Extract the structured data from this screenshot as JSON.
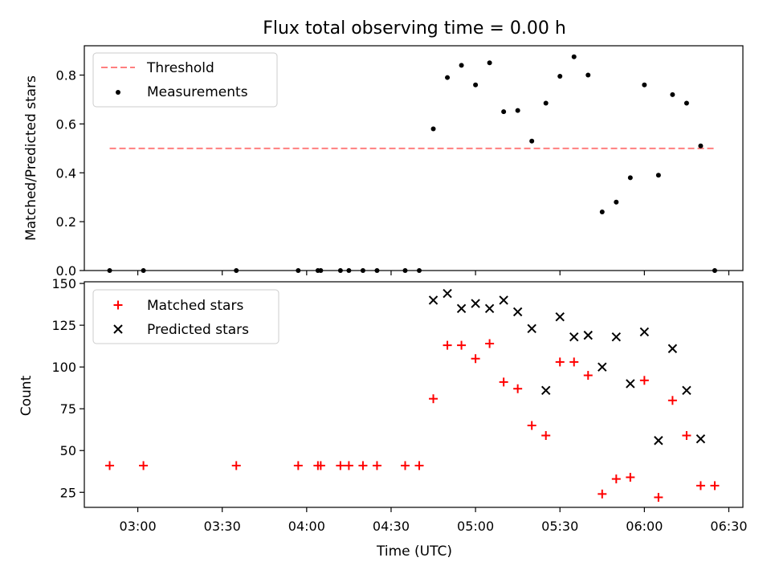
{
  "title": "Flux total observing time = 0.00 h",
  "chart_data": [
    {
      "type": "scatter",
      "ylabel": "Matched/Predicted stars",
      "ylim": [
        0,
        0.92
      ],
      "yticks": [
        0.0,
        0.2,
        0.4,
        0.6,
        0.8
      ],
      "ytick_labels": [
        "0.0",
        "0.2",
        "0.4",
        "0.6",
        "0.8"
      ],
      "legend": {
        "position": "top-left",
        "entries": [
          "Threshold",
          "Measurements"
        ]
      },
      "threshold": {
        "name": "Threshold",
        "value": 0.5,
        "x_start": "02:50",
        "x_end": "06:25",
        "color": "#ff7f7f"
      },
      "series": [
        {
          "name": "Measurements",
          "color": "#000000",
          "points": [
            [
              "02:50",
              0.0
            ],
            [
              "03:02",
              0.0
            ],
            [
              "03:35",
              0.0
            ],
            [
              "03:57",
              0.0
            ],
            [
              "04:04",
              0.0
            ],
            [
              "04:05",
              0.0
            ],
            [
              "04:12",
              0.0
            ],
            [
              "04:15",
              0.0
            ],
            [
              "04:20",
              0.0
            ],
            [
              "04:25",
              0.0
            ],
            [
              "04:35",
              0.0
            ],
            [
              "04:40",
              0.0
            ],
            [
              "04:45",
              0.58
            ],
            [
              "04:50",
              0.79
            ],
            [
              "04:55",
              0.84
            ],
            [
              "05:00",
              0.76
            ],
            [
              "05:05",
              0.85
            ],
            [
              "05:10",
              0.65
            ],
            [
              "05:15",
              0.655
            ],
            [
              "05:20",
              0.53
            ],
            [
              "05:25",
              0.685
            ],
            [
              "05:30",
              0.795
            ],
            [
              "05:35",
              0.875
            ],
            [
              "05:40",
              0.8
            ],
            [
              "05:45",
              0.24
            ],
            [
              "05:50",
              0.28
            ],
            [
              "05:55",
              0.38
            ],
            [
              "06:00",
              0.76
            ],
            [
              "06:05",
              0.39
            ],
            [
              "06:10",
              0.72
            ],
            [
              "06:15",
              0.685
            ],
            [
              "06:20",
              0.51
            ],
            [
              "06:25",
              0.0
            ]
          ]
        }
      ]
    },
    {
      "type": "scatter",
      "xlabel": "Time (UTC)",
      "ylabel": "Count",
      "ylim": [
        16,
        151
      ],
      "yticks": [
        25,
        50,
        75,
        100,
        125,
        150
      ],
      "ytick_labels": [
        "25",
        "50",
        "75",
        "100",
        "125",
        "150"
      ],
      "xlim": [
        "02:41",
        "06:35"
      ],
      "xticks": [
        "03:00",
        "03:30",
        "04:00",
        "04:30",
        "05:00",
        "05:30",
        "06:00",
        "06:30"
      ],
      "legend": {
        "position": "top-left",
        "entries": [
          "Matched stars",
          "Predicted stars"
        ]
      },
      "series": [
        {
          "name": "Matched stars",
          "marker": "+",
          "color": "#ff0000",
          "points": [
            [
              "02:50",
              41
            ],
            [
              "03:02",
              41
            ],
            [
              "03:35",
              41
            ],
            [
              "03:57",
              41
            ],
            [
              "04:04",
              41
            ],
            [
              "04:05",
              41
            ],
            [
              "04:12",
              41
            ],
            [
              "04:15",
              41
            ],
            [
              "04:20",
              41
            ],
            [
              "04:25",
              41
            ],
            [
              "04:35",
              41
            ],
            [
              "04:40",
              41
            ],
            [
              "04:45",
              81
            ],
            [
              "04:50",
              113
            ],
            [
              "04:55",
              113
            ],
            [
              "05:00",
              105
            ],
            [
              "05:05",
              114
            ],
            [
              "05:10",
              91
            ],
            [
              "05:15",
              87
            ],
            [
              "05:20",
              65
            ],
            [
              "05:25",
              59
            ],
            [
              "05:30",
              103
            ],
            [
              "05:35",
              103
            ],
            [
              "05:40",
              95
            ],
            [
              "05:45",
              24
            ],
            [
              "05:50",
              33
            ],
            [
              "05:55",
              34
            ],
            [
              "06:00",
              92
            ],
            [
              "06:05",
              22
            ],
            [
              "06:10",
              80
            ],
            [
              "06:15",
              59
            ],
            [
              "06:20",
              29
            ],
            [
              "06:25",
              29
            ]
          ]
        },
        {
          "name": "Predicted stars",
          "marker": "x",
          "color": "#000000",
          "points": [
            [
              "04:45",
              140
            ],
            [
              "04:50",
              144
            ],
            [
              "04:55",
              135
            ],
            [
              "05:00",
              138
            ],
            [
              "05:05",
              135
            ],
            [
              "05:10",
              140
            ],
            [
              "05:15",
              133
            ],
            [
              "05:20",
              123
            ],
            [
              "05:25",
              86
            ],
            [
              "05:30",
              130
            ],
            [
              "05:35",
              118
            ],
            [
              "05:40",
              119
            ],
            [
              "05:45",
              100
            ],
            [
              "05:50",
              118
            ],
            [
              "05:55",
              90
            ],
            [
              "06:00",
              121
            ],
            [
              "06:05",
              56
            ],
            [
              "06:10",
              111
            ],
            [
              "06:15",
              86
            ],
            [
              "06:20",
              57
            ]
          ]
        }
      ]
    }
  ]
}
